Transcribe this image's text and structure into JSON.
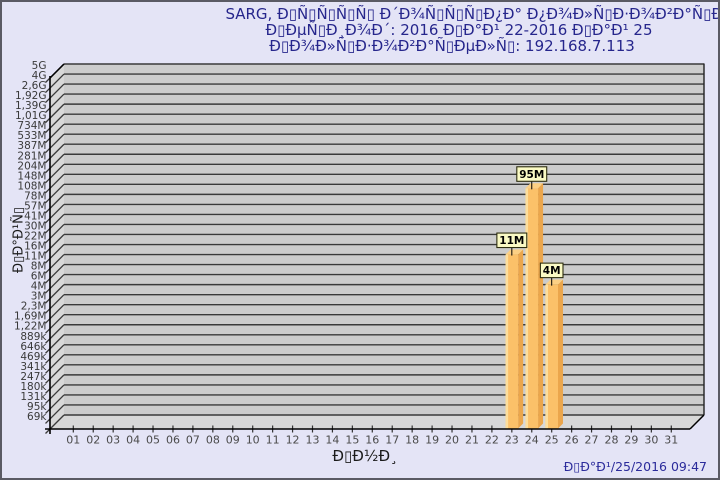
{
  "page": {
    "background": "#E4E4F6",
    "border_color": "#5A5A64"
  },
  "title": {
    "line1": "SARG, Ð▯Ñ▯Ñ▯Ñ▯Ñ▯ Ð´Ð¾Ñ▯Ñ▯Ñ▯Ð¿Ð° Ð¿Ð¾Ð»Ñ▯Ð·Ð¾Ð²Ð°Ñ▯ÐµÐ»Ñ▯",
    "line2": "Ð▯ÐµÑ▯Ð¸Ð¾Ð´: 2016 Ð▯Ð°Ð¹ 22-2016 Ð▯Ð°Ð¹ 25",
    "line3": "Ð▯Ð¾Ð»Ñ▯Ð·Ð¾Ð²Ð°Ñ▯ÐµÐ»Ñ▯: 192.168.7.113",
    "color": "#26268C"
  },
  "footer": {
    "timestamp": "Ð▯Ð°Ð¹/25/2016 09:47",
    "color": "#2B2B9B"
  },
  "chart_data": {
    "type": "bar",
    "xlabel": "Ð▯Ð½Ð¸",
    "ylabel": "Ð▯Ð°Ð¹Ñ▯",
    "x_tick_labels": [
      "01",
      "02",
      "03",
      "04",
      "05",
      "06",
      "07",
      "08",
      "09",
      "10",
      "11",
      "12",
      "13",
      "14",
      "15",
      "16",
      "17",
      "18",
      "19",
      "20",
      "21",
      "22",
      "23",
      "24",
      "25",
      "26",
      "27",
      "28",
      "29",
      "30",
      "31"
    ],
    "y_tick_labels": [
      "5G",
      "4G",
      "2,6G",
      "1,92G",
      "1,39G",
      "1,01G",
      "734M",
      "533M",
      "387M",
      "281M",
      "204M",
      "148M",
      "108M",
      "78M",
      "57M",
      "41M",
      "30M",
      "22M",
      "16M",
      "11M",
      "8M",
      "6M",
      "4M",
      "3M",
      "2,3M",
      "1,69M",
      "1,22M",
      "889k",
      "646k",
      "469k",
      "341k",
      "247k",
      "180k",
      "131k",
      "95k",
      "69k"
    ],
    "bars": [
      {
        "day": "23",
        "value_label": "11M",
        "value_bytes": 11000000
      },
      {
        "day": "24",
        "value_label": "95M",
        "value_bytes": 95000000
      },
      {
        "day": "25",
        "value_label": "4M",
        "value_bytes": 4000000
      }
    ],
    "legend": null,
    "grid": "horizontal",
    "colors": {
      "bar_front": "#FBC169",
      "bar_highlight": "#FDDE9C",
      "bar_side": "#EBA64C",
      "bar_top": "#FCD084",
      "back_wall": "#CCCCCC",
      "side_wall": "#D8D8D8",
      "grid_line": "#3A3A3A",
      "axis_line": "#000000",
      "callout_bg": "#FAFAC4",
      "callout_border": "#2E2E10"
    }
  }
}
